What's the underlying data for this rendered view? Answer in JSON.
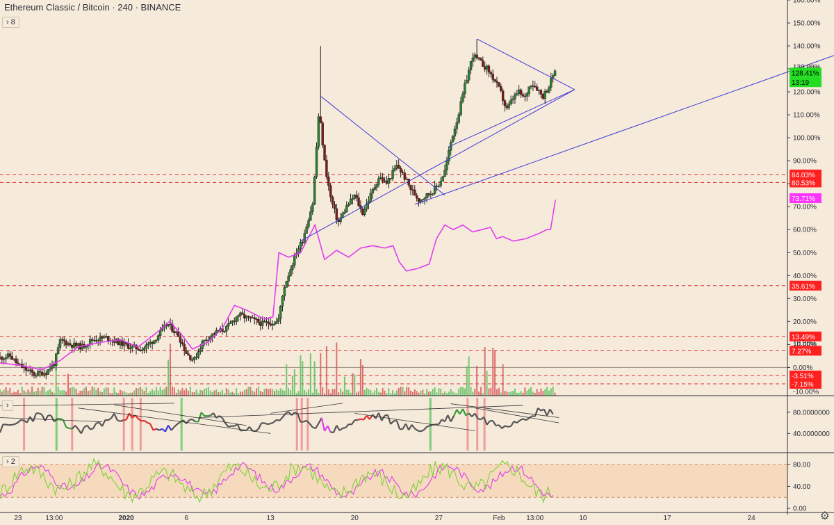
{
  "header": {
    "title": "Ethereum Classic / Bitcoin · 240 · BINANCE",
    "indicators_toggle": "8",
    "pane2_toggle": "",
    "pane3_toggle": "2"
  },
  "colors": {
    "background": "#f6eadb",
    "candle_up": "#2e7d32",
    "candle_down": "#7a1c1c",
    "trendline": "#3b3bd6",
    "comparison_line": "#e23cf0",
    "level_line": "#e03030",
    "level_badge": "#ff2020",
    "last_price_badge": "#22dd22",
    "comparison_badge": "#ff33ff"
  },
  "chart_data": [
    {
      "type": "candlestick",
      "title": "Ethereum Classic / Bitcoin · 240 · BINANCE",
      "y_scale": "percent",
      "ylim": [
        -12,
        160
      ],
      "y_ticks": [
        "160.00%",
        "150.00%",
        "140.00%",
        "130.00%",
        "120.00%",
        "110.00%",
        "100.00%",
        "90.00%",
        "80.00%",
        "70.00%",
        "60.00%",
        "50.00%",
        "40.00%",
        "30.00%",
        "20.00%",
        "10.00%",
        "0.00%",
        "-10.00%"
      ],
      "y_tick_values": [
        160,
        150,
        140,
        130,
        120,
        110,
        100,
        90,
        80,
        70,
        60,
        50,
        40,
        30,
        20,
        10,
        0,
        -10
      ],
      "x_ticks": [
        "23",
        "13:00",
        "2020",
        "6",
        "13",
        "20",
        "27",
        "Feb",
        "13:00",
        "10",
        "17",
        "24"
      ],
      "x_tick_days": [
        0,
        3,
        9,
        14,
        21,
        28,
        35,
        40,
        43,
        47,
        54,
        61
      ],
      "x_range_days": [
        -1.5,
        64
      ],
      "price_path": [
        [
          -1.5,
          4
        ],
        [
          -0.5,
          5
        ],
        [
          0.2,
          1
        ],
        [
          1.5,
          -3
        ],
        [
          2.5,
          -2
        ],
        [
          3.2,
          2
        ],
        [
          3.7,
          12
        ],
        [
          4.5,
          10
        ],
        [
          5.5,
          9
        ],
        [
          6.3,
          12
        ],
        [
          7.5,
          13
        ],
        [
          8.5,
          11
        ],
        [
          9.5,
          9
        ],
        [
          10.5,
          8
        ],
        [
          11.5,
          12
        ],
        [
          12.6,
          19
        ],
        [
          13.5,
          14
        ],
        [
          14.2,
          6
        ],
        [
          14.8,
          3
        ],
        [
          15.5,
          11
        ],
        [
          16.5,
          15
        ],
        [
          17.5,
          17
        ],
        [
          18.5,
          23
        ],
        [
          19.5,
          21
        ],
        [
          20.5,
          19
        ],
        [
          21.8,
          20
        ],
        [
          22.3,
          35
        ],
        [
          23.3,
          50
        ],
        [
          23.8,
          55
        ],
        [
          24.7,
          72
        ],
        [
          25.2,
          112
        ],
        [
          25.7,
          88
        ],
        [
          26.2,
          73
        ],
        [
          26.8,
          63
        ],
        [
          27.5,
          70
        ],
        [
          28.2,
          75
        ],
        [
          28.8,
          67
        ],
        [
          29.5,
          75
        ],
        [
          30.2,
          83
        ],
        [
          30.8,
          80
        ],
        [
          31.7,
          88
        ],
        [
          32.3,
          83
        ],
        [
          32.8,
          78
        ],
        [
          33.5,
          73
        ],
        [
          34.5,
          76
        ],
        [
          35.2,
          80
        ],
        [
          35.7,
          86
        ],
        [
          36.2,
          99
        ],
        [
          36.8,
          110
        ],
        [
          37.4,
          124
        ],
        [
          38.0,
          136
        ],
        [
          38.6,
          133
        ],
        [
          39.2,
          130
        ],
        [
          39.8,
          125
        ],
        [
          40.3,
          120
        ],
        [
          40.8,
          112
        ],
        [
          41.3,
          117
        ],
        [
          41.8,
          120
        ],
        [
          42.3,
          117
        ],
        [
          42.8,
          124
        ],
        [
          43.3,
          122
        ],
        [
          43.8,
          118
        ],
        [
          44.3,
          122
        ],
        [
          44.7,
          128
        ]
      ],
      "volume_spikes_days": [
        3.2,
        4.2,
        12.6,
        22.3,
        22.9,
        23.6,
        24.3,
        24.7,
        25.2,
        25.7,
        26.5,
        27.2,
        27.9,
        28.6,
        37.4,
        38.2,
        38.9,
        39.6,
        40.3
      ],
      "comparison_series": {
        "color": "#e23cf0",
        "points": [
          [
            -1.5,
            2
          ],
          [
            0,
            1
          ],
          [
            2,
            -1
          ],
          [
            3.5,
            3
          ],
          [
            5,
            9
          ],
          [
            7,
            11
          ],
          [
            8.5,
            12
          ],
          [
            10,
            9
          ],
          [
            11.5,
            15
          ],
          [
            12.6,
            20
          ],
          [
            13.5,
            15
          ],
          [
            14.5,
            8
          ],
          [
            15.8,
            11
          ],
          [
            17,
            17
          ],
          [
            18,
            27
          ],
          [
            19,
            25
          ],
          [
            20.5,
            21
          ],
          [
            21.2,
            22
          ],
          [
            21.7,
            50
          ],
          [
            22.5,
            48
          ],
          [
            23.5,
            50
          ],
          [
            24.3,
            58
          ],
          [
            24.7,
            62
          ],
          [
            25.5,
            47
          ],
          [
            26.5,
            51
          ],
          [
            27.5,
            48
          ],
          [
            28.5,
            52
          ],
          [
            29.5,
            53
          ],
          [
            30.5,
            52
          ],
          [
            31.2,
            53
          ],
          [
            31.7,
            46
          ],
          [
            32.3,
            42
          ],
          [
            33.2,
            43
          ],
          [
            34.2,
            45
          ],
          [
            34.8,
            56
          ],
          [
            35.5,
            62
          ],
          [
            36.2,
            60
          ],
          [
            37,
            62
          ],
          [
            37.8,
            59
          ],
          [
            38.6,
            60
          ],
          [
            39.3,
            61
          ],
          [
            39.8,
            56
          ],
          [
            40.3,
            57
          ],
          [
            41.2,
            55
          ],
          [
            42.2,
            56
          ],
          [
            43.2,
            58
          ],
          [
            44.0,
            60
          ],
          [
            44.3,
            60
          ],
          [
            44.7,
            73
          ]
        ]
      },
      "trendlines": [
        [
          [
            23.5,
            55
          ],
          [
            46.3,
            121
          ]
        ],
        [
          [
            25.2,
            118
          ],
          [
            35.5,
            75
          ]
        ],
        [
          [
            35.8,
            96
          ],
          [
            46.3,
            121
          ]
        ],
        [
          [
            38.2,
            143
          ],
          [
            46.3,
            121
          ]
        ],
        [
          [
            33,
            71
          ],
          [
            68.5,
            137
          ]
        ]
      ],
      "horizontal_levels": [
        {
          "label": "84.03%",
          "value": 84.03
        },
        {
          "label": "80.53%",
          "value": 80.53
        },
        {
          "label": "35.61%",
          "value": 35.61
        },
        {
          "label": "13.49%",
          "value": 13.49
        },
        {
          "label": "7.27%",
          "value": 7.27
        },
        {
          "label": "-3.51%",
          "value": -3.51
        },
        {
          "label": "-7.15%",
          "value": -7.15
        }
      ],
      "partial_labels": [
        {
          "label": "130.00%",
          "value": 131
        },
        {
          "label": "10.00%",
          "value": 10.5
        },
        {
          "label": "-10.00%",
          "value": -10.5
        }
      ],
      "badges": [
        {
          "label": "128.41%",
          "value": 128.41,
          "kind": "last"
        },
        {
          "label": "13:19",
          "value": 124.2,
          "kind": "countdown"
        },
        {
          "label": "73.71%",
          "value": 73.71,
          "kind": "comparison"
        }
      ],
      "zero_line": 0
    },
    {
      "type": "line",
      "pane": "oscillator-1",
      "y_ticks": [
        "80.0000000",
        "40.0000000"
      ],
      "y_tick_values": [
        80,
        40
      ],
      "ylim": [
        5,
        110
      ],
      "series_color_segments": [
        "#555555",
        "#3a9a3a",
        "#e03030",
        "#3b3bd6",
        "#e23cf0"
      ],
      "signal_bars_days": [
        0.5,
        3.2,
        4.5,
        8.8,
        9.5,
        10.2,
        13.6,
        23.2,
        23.6,
        24.1,
        34.3,
        37.4,
        38.2,
        38.8
      ]
    },
    {
      "type": "line",
      "pane": "oscillator-2",
      "y_ticks": [
        "80.00",
        "40.00",
        "0.00"
      ],
      "y_tick_values": [
        80,
        40,
        0
      ],
      "ylim": [
        -5,
        100
      ],
      "band": [
        20,
        80
      ],
      "series": [
        {
          "color": "#e23cf0"
        },
        {
          "color": "#7ed23a"
        }
      ]
    }
  ]
}
